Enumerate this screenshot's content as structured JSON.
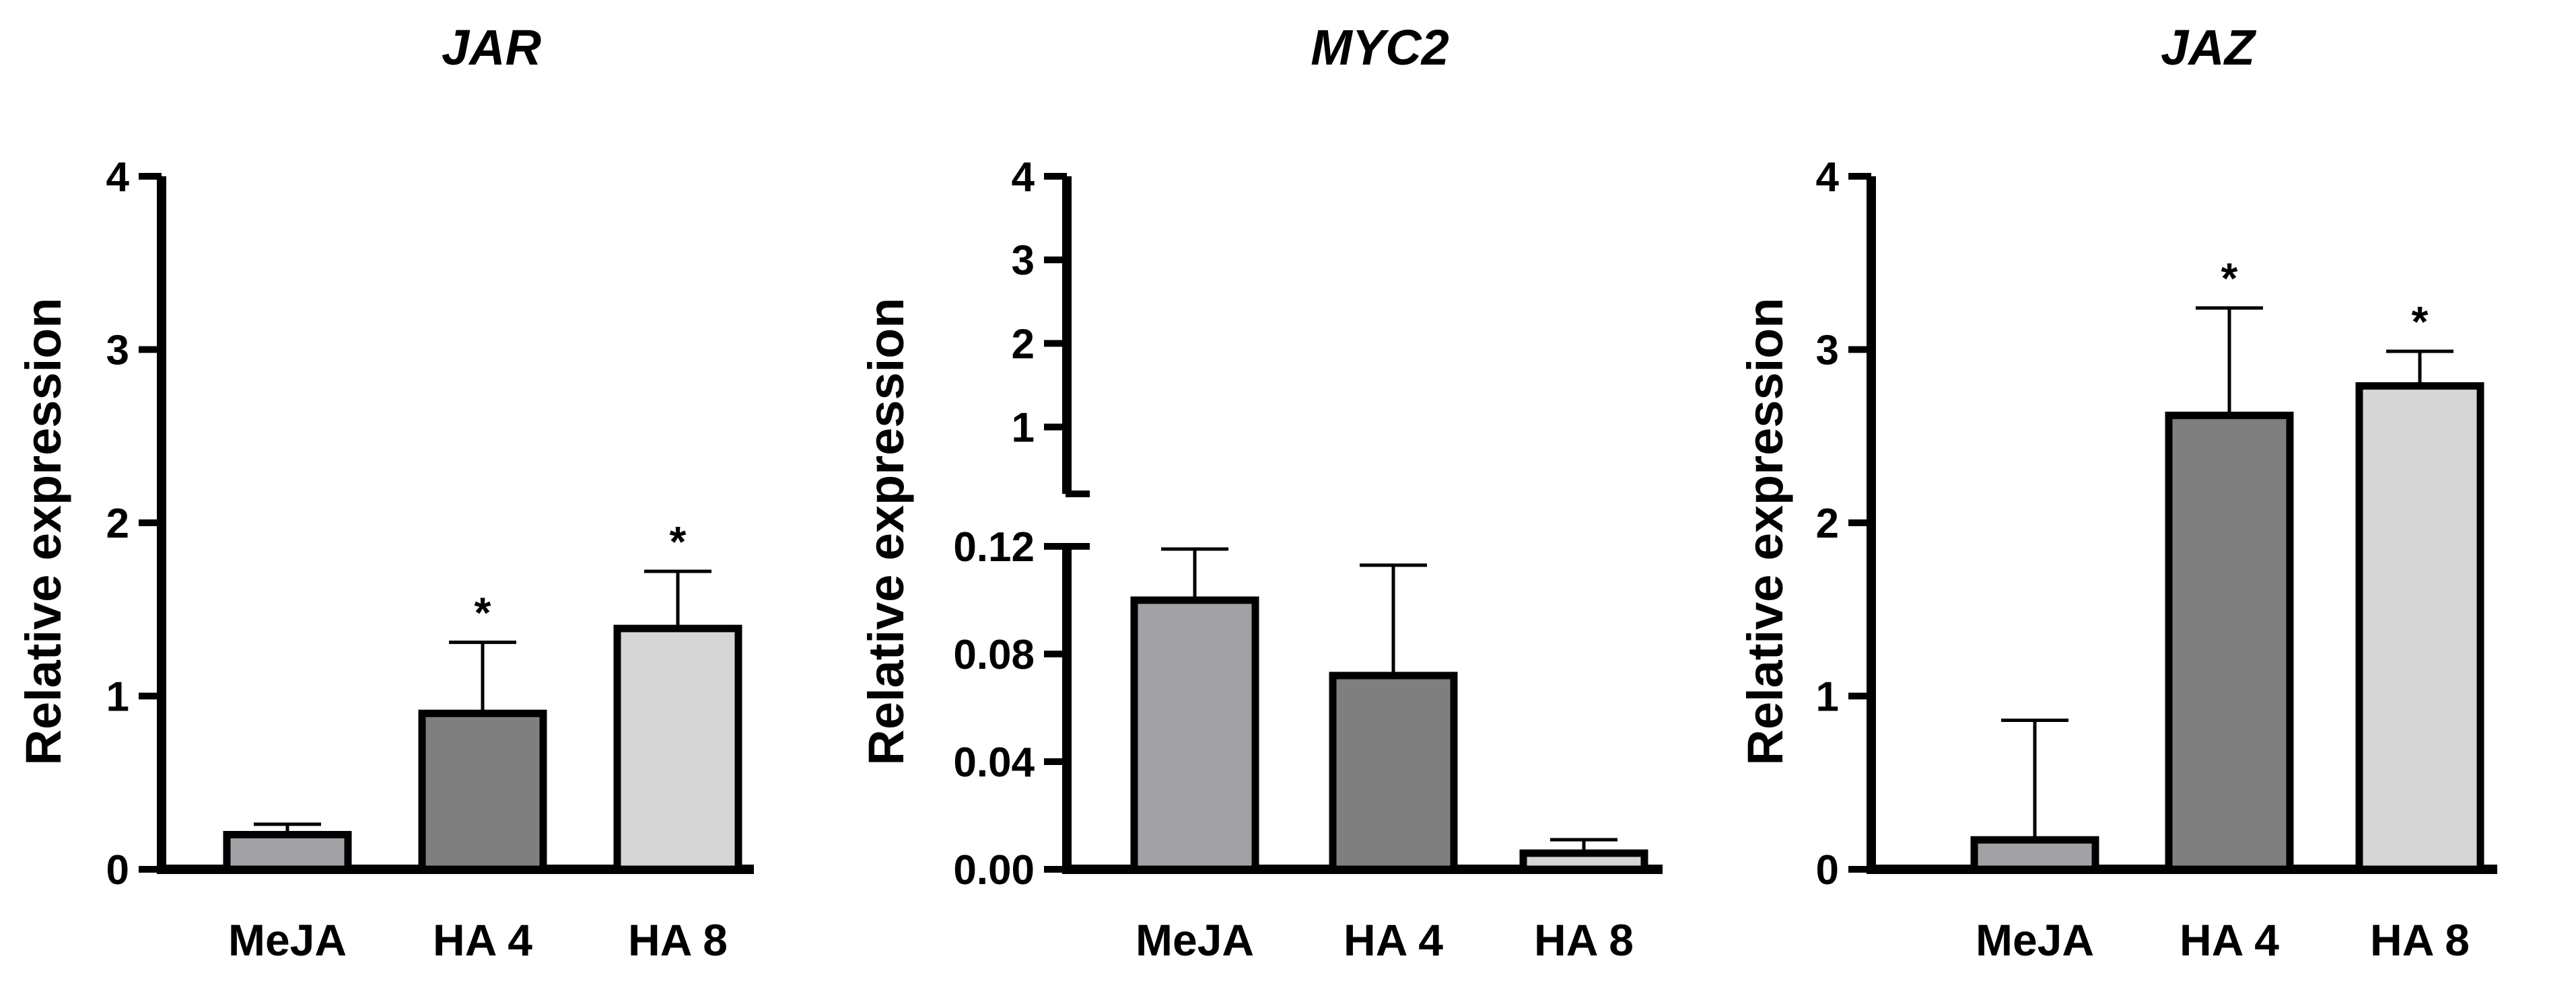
{
  "chart_data": [
    {
      "type": "bar",
      "title": "JAR",
      "ylabel": "Relative expression",
      "xlabel": "",
      "categories": [
        "MeJA",
        "HA 4",
        "HA 8"
      ],
      "values": [
        0.2,
        0.9,
        1.39
      ],
      "error": [
        0.06,
        0.41,
        0.33
      ],
      "significance": [
        "",
        "*",
        "*"
      ],
      "bar_colors": [
        "#a2a2a6",
        "#7f7f7f",
        "#d6d6d6"
      ],
      "ylim": [
        0,
        4
      ],
      "yticks": [
        0,
        1,
        2,
        3,
        4
      ],
      "ytick_labels": [
        "0",
        "1",
        "2",
        "3",
        "4"
      ],
      "grid": false,
      "legend": "none"
    },
    {
      "type": "bar",
      "title": "MYC2",
      "ylabel": "Relative expression",
      "xlabel": "",
      "categories": [
        "MeJA",
        "HA 4",
        "HA 8"
      ],
      "values": [
        0.1,
        0.072,
        0.006
      ],
      "error": [
        0.019,
        0.041,
        0.005
      ],
      "significance": [
        "",
        "",
        ""
      ],
      "bar_colors": [
        "#a2a2a6",
        "#7f7f7f",
        "#d6d6d6"
      ],
      "y_axis_break": {
        "lower_range": [
          0,
          0.12
        ],
        "upper_range": [
          0.2,
          4
        ]
      },
      "yticks_lower": [
        0,
        0.04,
        0.08,
        0.12
      ],
      "ytick_labels_lower": [
        "0.00",
        "0.04",
        "0.08",
        "0.12"
      ],
      "yticks_upper": [
        1,
        2,
        3,
        4
      ],
      "ytick_labels_upper": [
        "1",
        "2",
        "3",
        "4"
      ],
      "grid": false,
      "legend": "none"
    },
    {
      "type": "bar",
      "title": "JAZ",
      "ylabel": "Relative expression",
      "xlabel": "",
      "categories": [
        "MeJA",
        "HA 4",
        "HA 8"
      ],
      "values": [
        0.17,
        2.62,
        2.79
      ],
      "error": [
        0.69,
        0.62,
        0.2
      ],
      "significance": [
        "",
        "*",
        "*"
      ],
      "bar_colors": [
        "#a2a2a6",
        "#7f7f7f",
        "#d6d6d6"
      ],
      "ylim": [
        0,
        4
      ],
      "yticks": [
        0,
        1,
        2,
        3,
        4
      ],
      "ytick_labels": [
        "0",
        "1",
        "2",
        "3",
        "4"
      ],
      "grid": false,
      "legend": "none"
    }
  ]
}
